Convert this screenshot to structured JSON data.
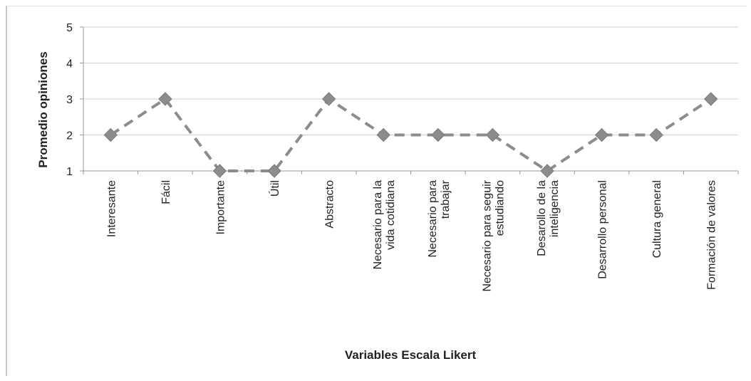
{
  "chart_data": {
    "type": "line",
    "title": "",
    "xlabel": "Variables Escala Likert",
    "ylabel": "Promedio opiniones",
    "ylim": [
      1,
      5
    ],
    "yticks": [
      "1",
      "2",
      "3",
      "4",
      "5"
    ],
    "grid": true,
    "legend": "none",
    "categories": [
      [
        "Interesante"
      ],
      [
        "Fácil"
      ],
      [
        "Importante"
      ],
      [
        "Útil"
      ],
      [
        "Abstracto"
      ],
      [
        "Necesario para la",
        "vida cotidiana"
      ],
      [
        "Necesario para",
        "trabajar"
      ],
      [
        "Necesario para seguir",
        "estudiando"
      ],
      [
        "Desarollo de la",
        "inteligencia"
      ],
      [
        "Desarrollo personal"
      ],
      [
        "Cultura general"
      ],
      [
        "Formación de valores"
      ]
    ],
    "series": [
      {
        "values": [
          2,
          3,
          1,
          1,
          3,
          2,
          2,
          2,
          1,
          2,
          2,
          3
        ],
        "color": "#8c8c8c",
        "line_style": "dashed",
        "marker": "diamond"
      }
    ],
    "colors": {
      "gridline": "#d0d0d0",
      "axis": "#999999",
      "text": "#222222"
    }
  }
}
